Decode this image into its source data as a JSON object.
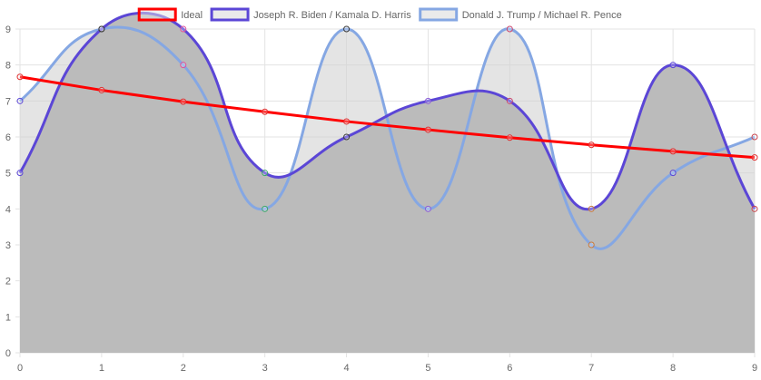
{
  "chart_data": {
    "type": "line",
    "x": [
      0,
      1,
      2,
      3,
      4,
      5,
      6,
      7,
      8,
      9
    ],
    "xlim": [
      0,
      9
    ],
    "ylim": [
      0,
      9
    ],
    "yticks": [
      0,
      1,
      2,
      3,
      4,
      5,
      6,
      7,
      8,
      9
    ],
    "grid": true,
    "legend_position": "top",
    "series": [
      {
        "name": "Ideal",
        "color": "#ff0000",
        "fill": "none",
        "tension": 0,
        "values": [
          7.67,
          7.3,
          6.98,
          6.7,
          6.43,
          6.2,
          5.98,
          5.78,
          5.6,
          5.43
        ]
      },
      {
        "name": "Joseph R. Biden / Kamala D. Harris",
        "color": "#5b46d6",
        "fill": "#bbbbbb",
        "tension": 0.45,
        "values": [
          5,
          9,
          9,
          5,
          6,
          7,
          7,
          4,
          8,
          4
        ]
      },
      {
        "name": "Donald J. Trump / Michael R. Pence",
        "color": "#85a7e3",
        "fill": "rgba(210,210,210,0.6)",
        "tension": 0.45,
        "values": [
          7,
          9,
          8,
          4,
          9,
          4,
          9,
          3,
          5,
          6
        ]
      }
    ]
  }
}
